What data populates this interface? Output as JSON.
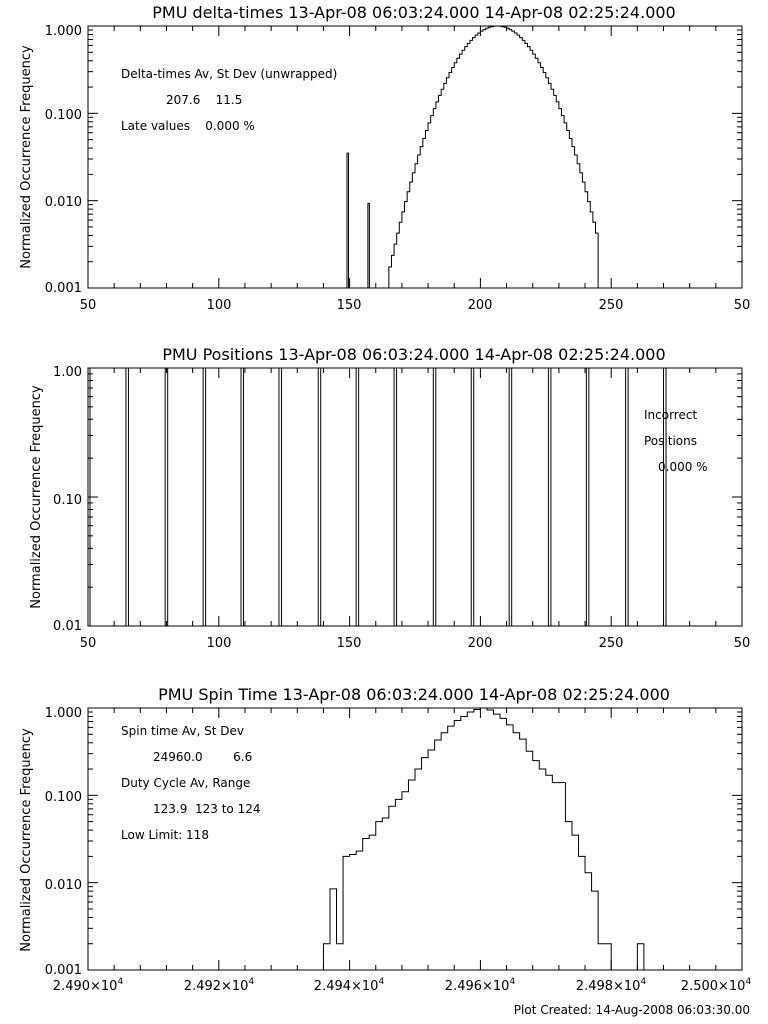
{
  "chart_data": [
    {
      "type": "histogram",
      "title": "PMU delta-times 13-Apr-08 06:03:24.000 14-Apr-08 02:25:24.000",
      "ylabel": "Normalized Occurrence Frequency",
      "xlabel": "",
      "xlim": [
        50,
        300
      ],
      "ylim": [
        0.001,
        1.0
      ],
      "yscale": "log",
      "xticks": [
        "50",
        "100",
        "150",
        "200",
        "250",
        "50"
      ],
      "yticks": [
        "0.001",
        "0.010",
        "0.100",
        "1.000"
      ],
      "annotations": {
        "line1": "Delta-times Av, St Dev (unwrapped)",
        "line2": "207.6    11.5",
        "line3": "Late values    0.000 %"
      },
      "spikes": [
        {
          "x": 149,
          "y": 0.035
        },
        {
          "x": 157,
          "y": 0.0093
        }
      ],
      "curve": {
        "x_start": 165,
        "x_end": 244,
        "peak_x": 206,
        "sigma": 11.5
      }
    },
    {
      "type": "histogram",
      "title": "PMU Positions 13-Apr-08 06:03:24.000 14-Apr-08 02:25:24.000",
      "ylabel": "Normalized Occurrence Frequency",
      "xlabel": "",
      "xlim": [
        50,
        300
      ],
      "ylim": [
        0.01,
        1.0
      ],
      "yscale": "log",
      "xticks": [
        "50",
        "100",
        "150",
        "200",
        "250",
        "50"
      ],
      "yticks": [
        "0.01",
        "0.10",
        "1.00"
      ],
      "annotations": {
        "line1": "Incorrect",
        "line2": "Positions",
        "line3": "0.000 %"
      },
      "bars_x": [
        64.5,
        79.5,
        94,
        108.5,
        123,
        138,
        152.5,
        167,
        182,
        196.5,
        211,
        226,
        240.5,
        255.5,
        270
      ]
    },
    {
      "type": "histogram",
      "title": "PMU Spin Time 13-Apr-08 06:03:24.000 14-Apr-08 02:25:24.000",
      "ylabel": "Normalized Occurrence Frequency",
      "xlabel": "",
      "xlim": [
        24900,
        25000
      ],
      "ylim": [
        0.001,
        1.0
      ],
      "yscale": "log",
      "xticks": [
        {
          "base": "2.490×10",
          "exp": "4"
        },
        {
          "base": "2.492×10",
          "exp": "4"
        },
        {
          "base": "2.494×10",
          "exp": "4"
        },
        {
          "base": "2.496×10",
          "exp": "4"
        },
        {
          "base": "2.498×10",
          "exp": "4"
        },
        {
          "base": "2.500×10",
          "exp": "4"
        }
      ],
      "yticks": [
        "0.001",
        "0.010",
        "0.100",
        "1.000"
      ],
      "annotations": {
        "line1": "Spin time Av, St Dev",
        "line2": "24960.0        6.6",
        "line3": "Duty Cycle Av, Range",
        "line4": "123.9  123 to 124",
        "line5": "Low Limit: 118"
      },
      "steps": [
        {
          "x": 24936,
          "y": 0.002
        },
        {
          "x": 24937,
          "y": 0.0085
        },
        {
          "x": 24938,
          "y": 0.002
        },
        {
          "x": 24939,
          "y": 0.02
        },
        {
          "x": 24940,
          "y": 0.021
        },
        {
          "x": 24941,
          "y": 0.023
        },
        {
          "x": 24942,
          "y": 0.032
        },
        {
          "x": 24943,
          "y": 0.035
        },
        {
          "x": 24944,
          "y": 0.05
        },
        {
          "x": 24945,
          "y": 0.055
        },
        {
          "x": 24946,
          "y": 0.075
        },
        {
          "x": 24947,
          "y": 0.09
        },
        {
          "x": 24948,
          "y": 0.11
        },
        {
          "x": 24949,
          "y": 0.15
        },
        {
          "x": 24950,
          "y": 0.2
        },
        {
          "x": 24951,
          "y": 0.27
        },
        {
          "x": 24952,
          "y": 0.33
        },
        {
          "x": 24953,
          "y": 0.43
        },
        {
          "x": 24954,
          "y": 0.52
        },
        {
          "x": 24955,
          "y": 0.62
        },
        {
          "x": 24956,
          "y": 0.72
        },
        {
          "x": 24957,
          "y": 0.8
        },
        {
          "x": 24958,
          "y": 0.9
        },
        {
          "x": 24959,
          "y": 0.96
        },
        {
          "x": 24960,
          "y": 1.0
        },
        {
          "x": 24961,
          "y": 0.95
        },
        {
          "x": 24962,
          "y": 0.85
        },
        {
          "x": 24963,
          "y": 0.76
        },
        {
          "x": 24964,
          "y": 0.64
        },
        {
          "x": 24965,
          "y": 0.52
        },
        {
          "x": 24966,
          "y": 0.44
        },
        {
          "x": 24967,
          "y": 0.32
        },
        {
          "x": 24968,
          "y": 0.25
        },
        {
          "x": 24969,
          "y": 0.2
        },
        {
          "x": 24970,
          "y": 0.17
        },
        {
          "x": 24971,
          "y": 0.14
        },
        {
          "x": 24972,
          "y": 0.14
        },
        {
          "x": 24973,
          "y": 0.05
        },
        {
          "x": 24974,
          "y": 0.035
        },
        {
          "x": 24975,
          "y": 0.02
        },
        {
          "x": 24976,
          "y": 0.013
        },
        {
          "x": 24977,
          "y": 0.008
        },
        {
          "x": 24978,
          "y": 0.002
        },
        {
          "x": 24979,
          "y": 0.002
        },
        {
          "x": 24980,
          "y": 0.001
        },
        {
          "x": 24981,
          "y": 0.001
        },
        {
          "x": 24982,
          "y": 0.001
        },
        {
          "x": 24983,
          "y": 0.001
        },
        {
          "x": 24984,
          "y": 0.002
        },
        {
          "x": 24985,
          "y": 0.001
        }
      ],
      "step_width": 1
    }
  ],
  "footer": {
    "text": "Plot Created: 14-Aug-2008 06:03:30.00"
  }
}
